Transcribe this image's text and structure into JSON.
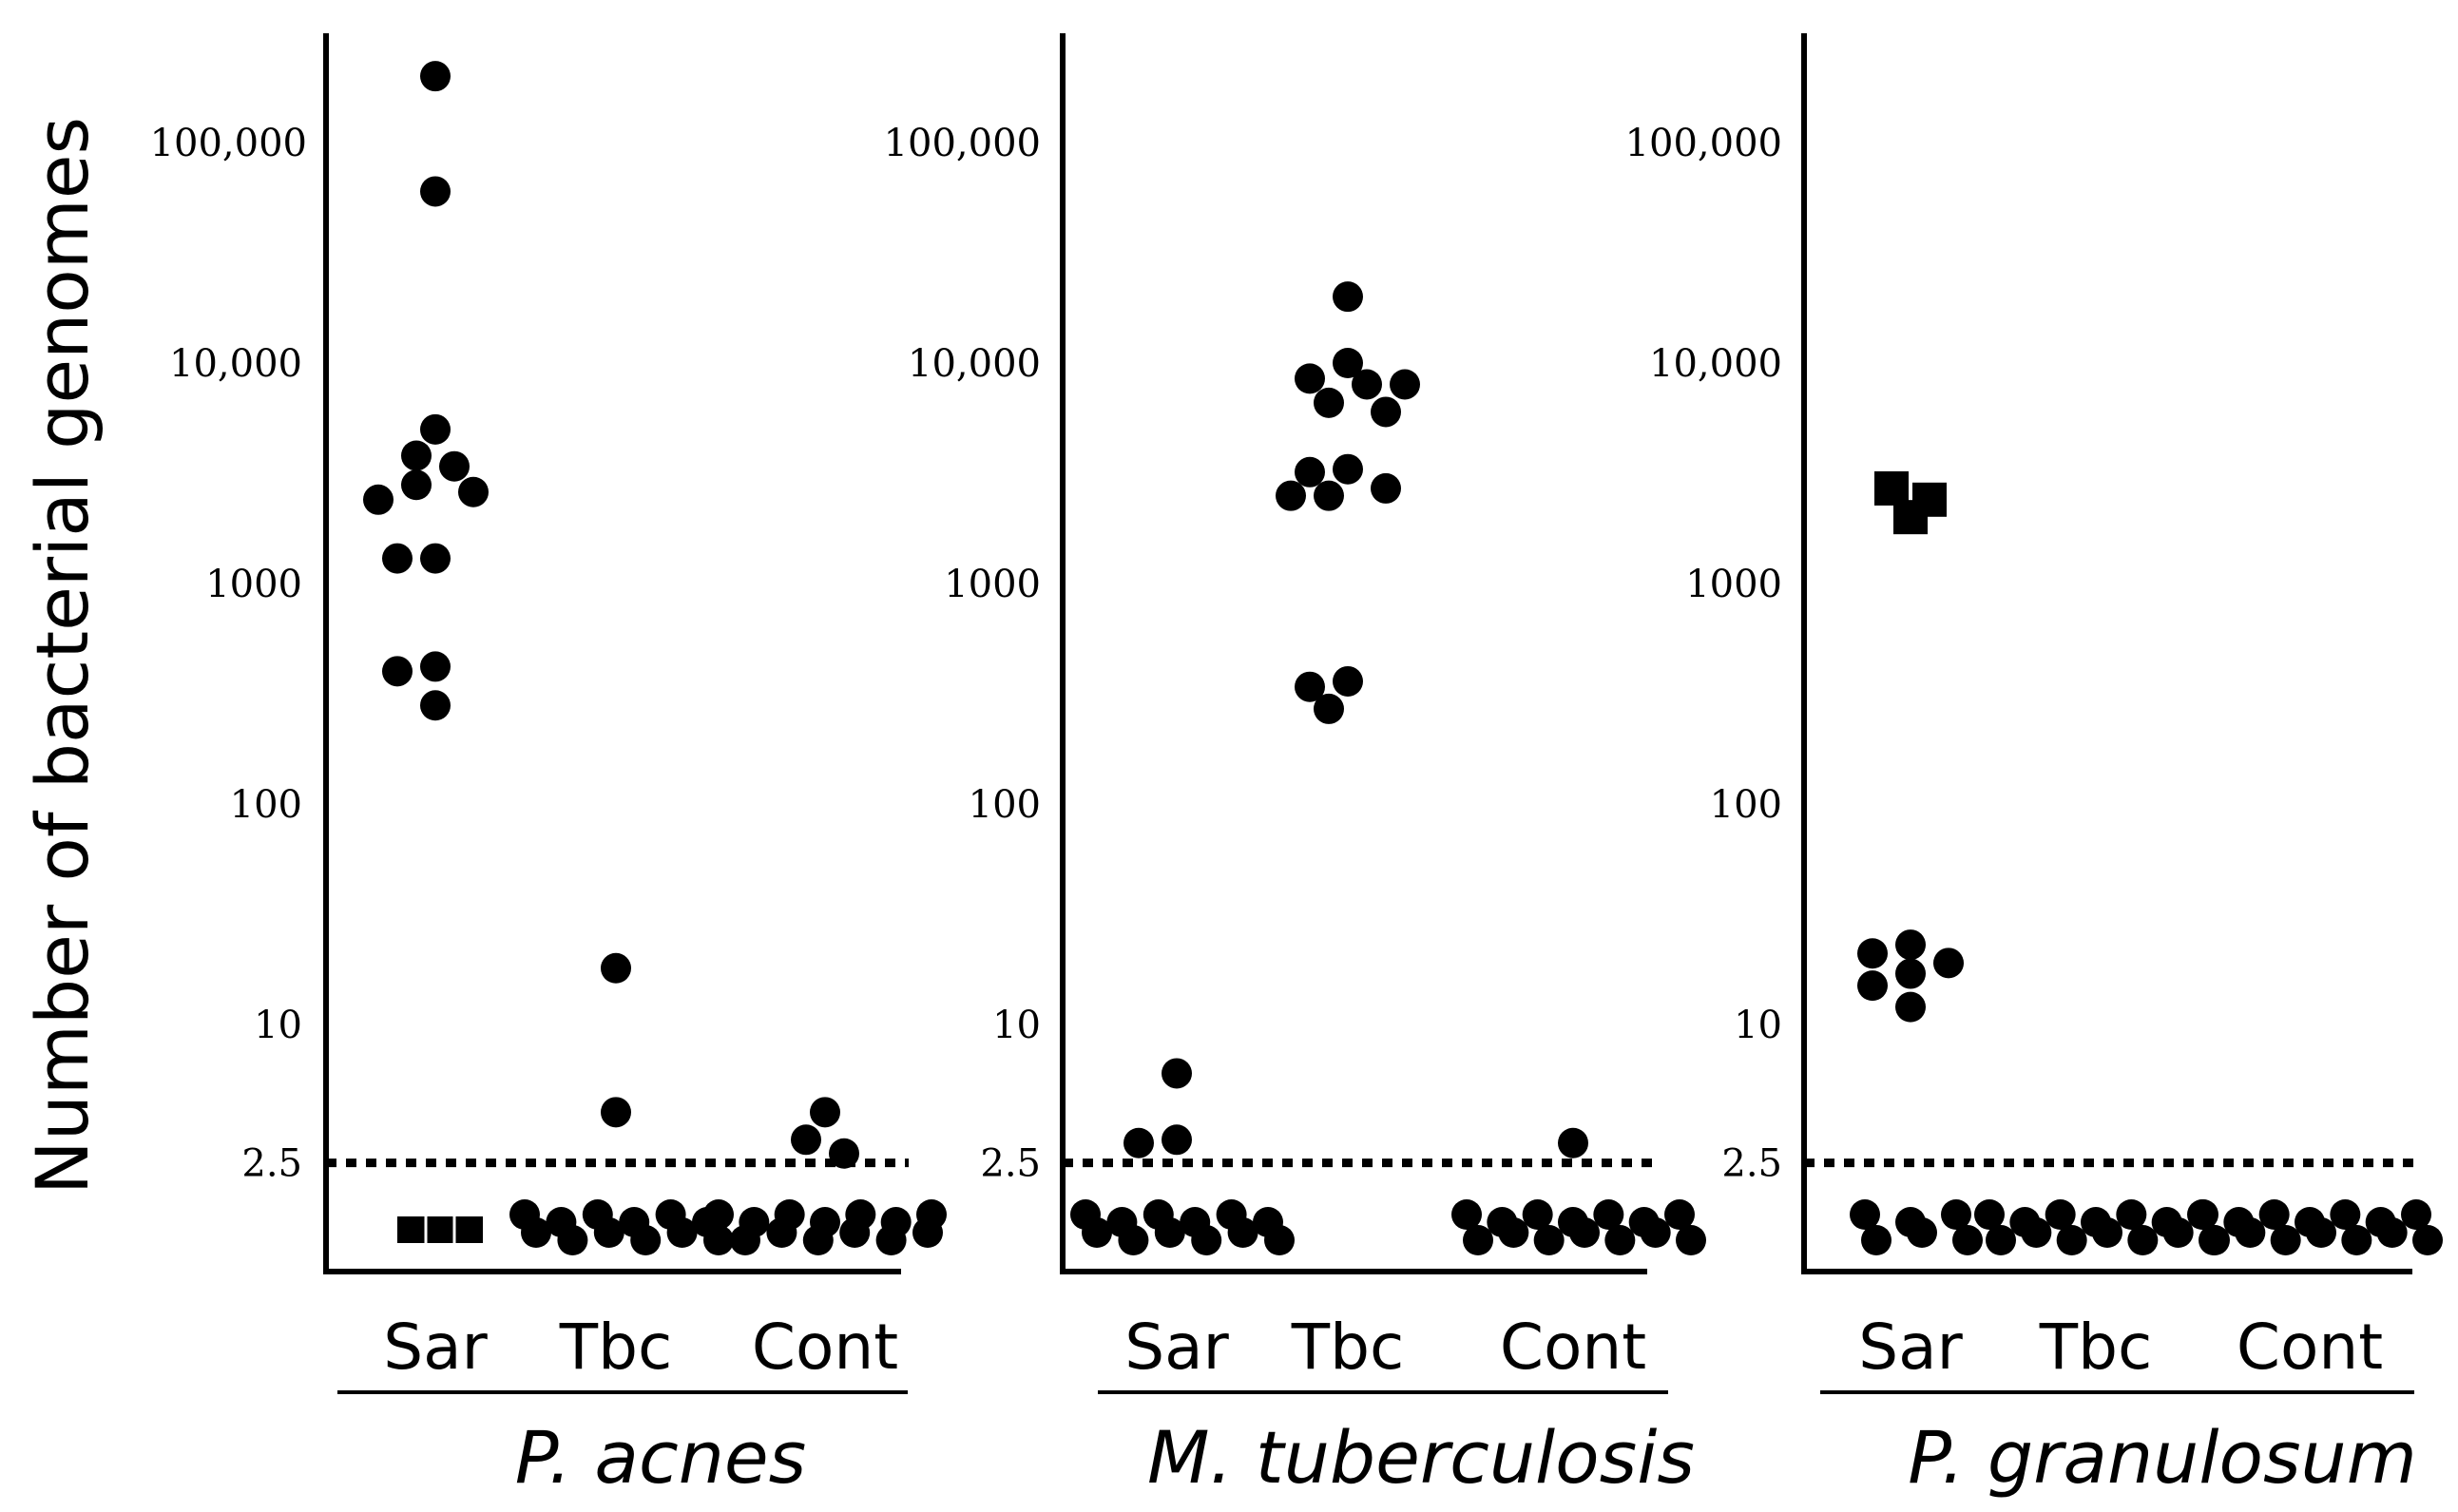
{
  "chart_data": {
    "type": "scatter",
    "scale": "log",
    "ylabel": "Number of bacterial genomes",
    "y_ticks": [
      {
        "value": 100000,
        "label": "100,000"
      },
      {
        "value": 10000,
        "label": "10,000"
      },
      {
        "value": 1000,
        "label": "1000"
      },
      {
        "value": 100,
        "label": "100"
      },
      {
        "value": 10,
        "label": "10"
      },
      {
        "value": 2.5,
        "label": "2.5"
      }
    ],
    "detection_limit": 2.5,
    "categories": [
      "Sar",
      "Tbc",
      "Cont"
    ],
    "panels": [
      {
        "organism": "P. acnes",
        "groups": [
          {
            "category": "Sar",
            "values": [
              200000,
              60000,
              5000,
              3800,
              3400,
              2800,
              2600,
              2400,
              1300,
              1300,
              420,
              400,
              280
            ]
          },
          {
            "category": "Tbc",
            "values": [
              18,
              4
            ]
          },
          {
            "category": "Cont",
            "values": [
              4,
              3,
              2.6
            ]
          }
        ]
      },
      {
        "organism": "M. tuberculosis",
        "groups": [
          {
            "category": "Sar",
            "values": [
              6,
              3,
              2.9
            ]
          },
          {
            "category": "Tbc",
            "values": [
              20000,
              10000,
              8500,
              8000,
              8000,
              6600,
              6000,
              3300,
              3200,
              2700,
              2500,
              2500,
              360,
              340,
              270
            ]
          },
          {
            "category": "Cont",
            "values": [
              2.9
            ]
          }
        ]
      },
      {
        "organism": "P. granulosum",
        "groups": [
          {
            "category": "Sar",
            "values": [
              23,
              21,
              19,
              17,
              15,
              12
            ]
          },
          {
            "category": "Tbc",
            "values": []
          },
          {
            "category": "Cont",
            "values": []
          }
        ]
      }
    ],
    "below_limit_counts": {
      "P. acnes": {
        "Sar": 3,
        "Tbc": 12,
        "Cont": 13
      },
      "M. tuberculosis": {
        "Sar": 12,
        "Tbc": 0,
        "Cont": 14
      },
      "P. granulosum": {
        "Sar": 6,
        "Tbc": 14,
        "Cont": 14
      }
    },
    "square_markers": {
      "P. acnes": {
        "Sar": [
          {
            "value": 1.5
          },
          {
            "value": 1.5
          },
          {
            "value": 1.5
          }
        ]
      },
      "P. granulosum": {
        "Sar": [
          {
            "value": 2700
          },
          {
            "value": 2400
          },
          {
            "value": 2000
          }
        ]
      }
    }
  }
}
